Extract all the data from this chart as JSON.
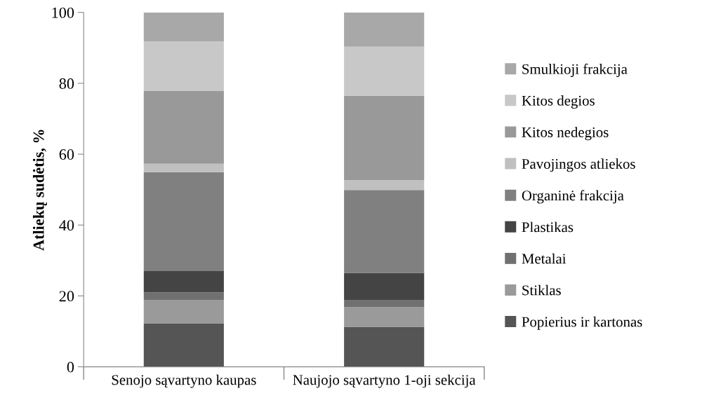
{
  "chart_data": {
    "type": "bar",
    "stacked": true,
    "ylabel": "Atliekų sudėtis, %",
    "categories": [
      "Senojo sąvartyno kaupas",
      "Naujojo sąvartyno 1-oji sekcija"
    ],
    "ylim": [
      0,
      100
    ],
    "yticks": [
      0,
      20,
      40,
      60,
      80,
      100
    ],
    "grid": false,
    "legend": "right",
    "series": [
      {
        "name": "Popierius ir kartonas",
        "color": "#555555",
        "values": [
          12.3,
          11.3
        ]
      },
      {
        "name": "Stiklas",
        "color": "#9a9a9a",
        "values": [
          6.6,
          5.6
        ]
      },
      {
        "name": "Metalai",
        "color": "#707070",
        "values": [
          2.1,
          2.0
        ]
      },
      {
        "name": "Plastikas",
        "color": "#444444",
        "values": [
          6.0,
          7.6
        ]
      },
      {
        "name": "Organinė frakcija",
        "color": "#808080",
        "values": [
          27.9,
          23.4
        ]
      },
      {
        "name": "Pavojingos atliekos",
        "color": "#c0c0c0",
        "values": [
          2.4,
          2.8
        ]
      },
      {
        "name": "Kitos nedegios",
        "color": "#999999",
        "values": [
          20.5,
          23.8
        ]
      },
      {
        "name": "Kitos degios",
        "color": "#c8c8c8",
        "values": [
          14.0,
          13.8
        ]
      },
      {
        "name": "Smulkioji frakcija",
        "color": "#a8a8a8",
        "values": [
          8.2,
          9.7
        ]
      }
    ]
  }
}
